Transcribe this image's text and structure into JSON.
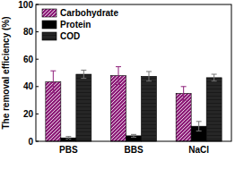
{
  "chart_data": {
    "type": "bar",
    "y_label": "The removal efficiency (%)",
    "categories": [
      "PBS",
      "BBS",
      "NaCl"
    ],
    "series": [
      {
        "name": "Carbohydrate",
        "color": "#8e1f7a",
        "values": [
          43.5,
          48,
          35
        ],
        "errors": [
          8,
          6.5,
          5
        ]
      },
      {
        "name": "Protein",
        "color": "#000000",
        "values": [
          2.5,
          4,
          11
        ],
        "errors": [
          1,
          1,
          3.5
        ]
      },
      {
        "name": "COD",
        "color": "#1a1a1a",
        "values": [
          49,
          47.5,
          46.5
        ],
        "errors": [
          3,
          3.5,
          2.5
        ]
      }
    ],
    "ylim": [
      0,
      100
    ],
    "yticks": [
      0,
      20,
      40,
      60,
      80,
      100
    ],
    "legend": "upper left"
  }
}
